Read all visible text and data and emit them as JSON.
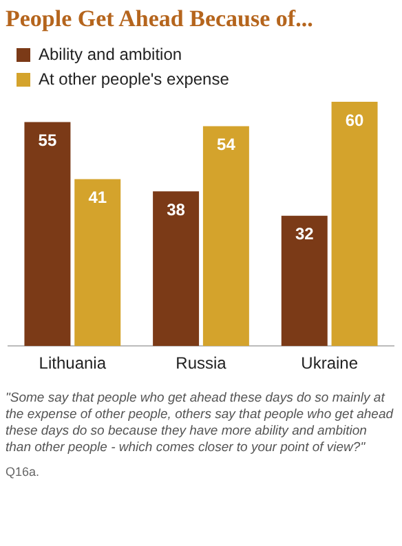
{
  "chart_data": {
    "type": "bar",
    "title": "People Get Ahead Because of...",
    "categories": [
      "Lithuania",
      "Russia",
      "Ukraine"
    ],
    "series": [
      {
        "name": "Ability and ambition",
        "color": "#7b3a17",
        "values": [
          55,
          38,
          32
        ]
      },
      {
        "name": "At other people's expense",
        "color": "#d4a32c",
        "values": [
          41,
          54,
          60
        ]
      }
    ],
    "data_labels": true,
    "legend": "top left",
    "grid": false,
    "tick_labels": "x",
    "annotations": [
      "\"Some say that people who get ahead these days do so mainly at the expense of other people, others say that people who get ahead these days do so because they have more ability and ambition than other people - which comes closer to your point of view?\"",
      "Q16a."
    ]
  }
}
